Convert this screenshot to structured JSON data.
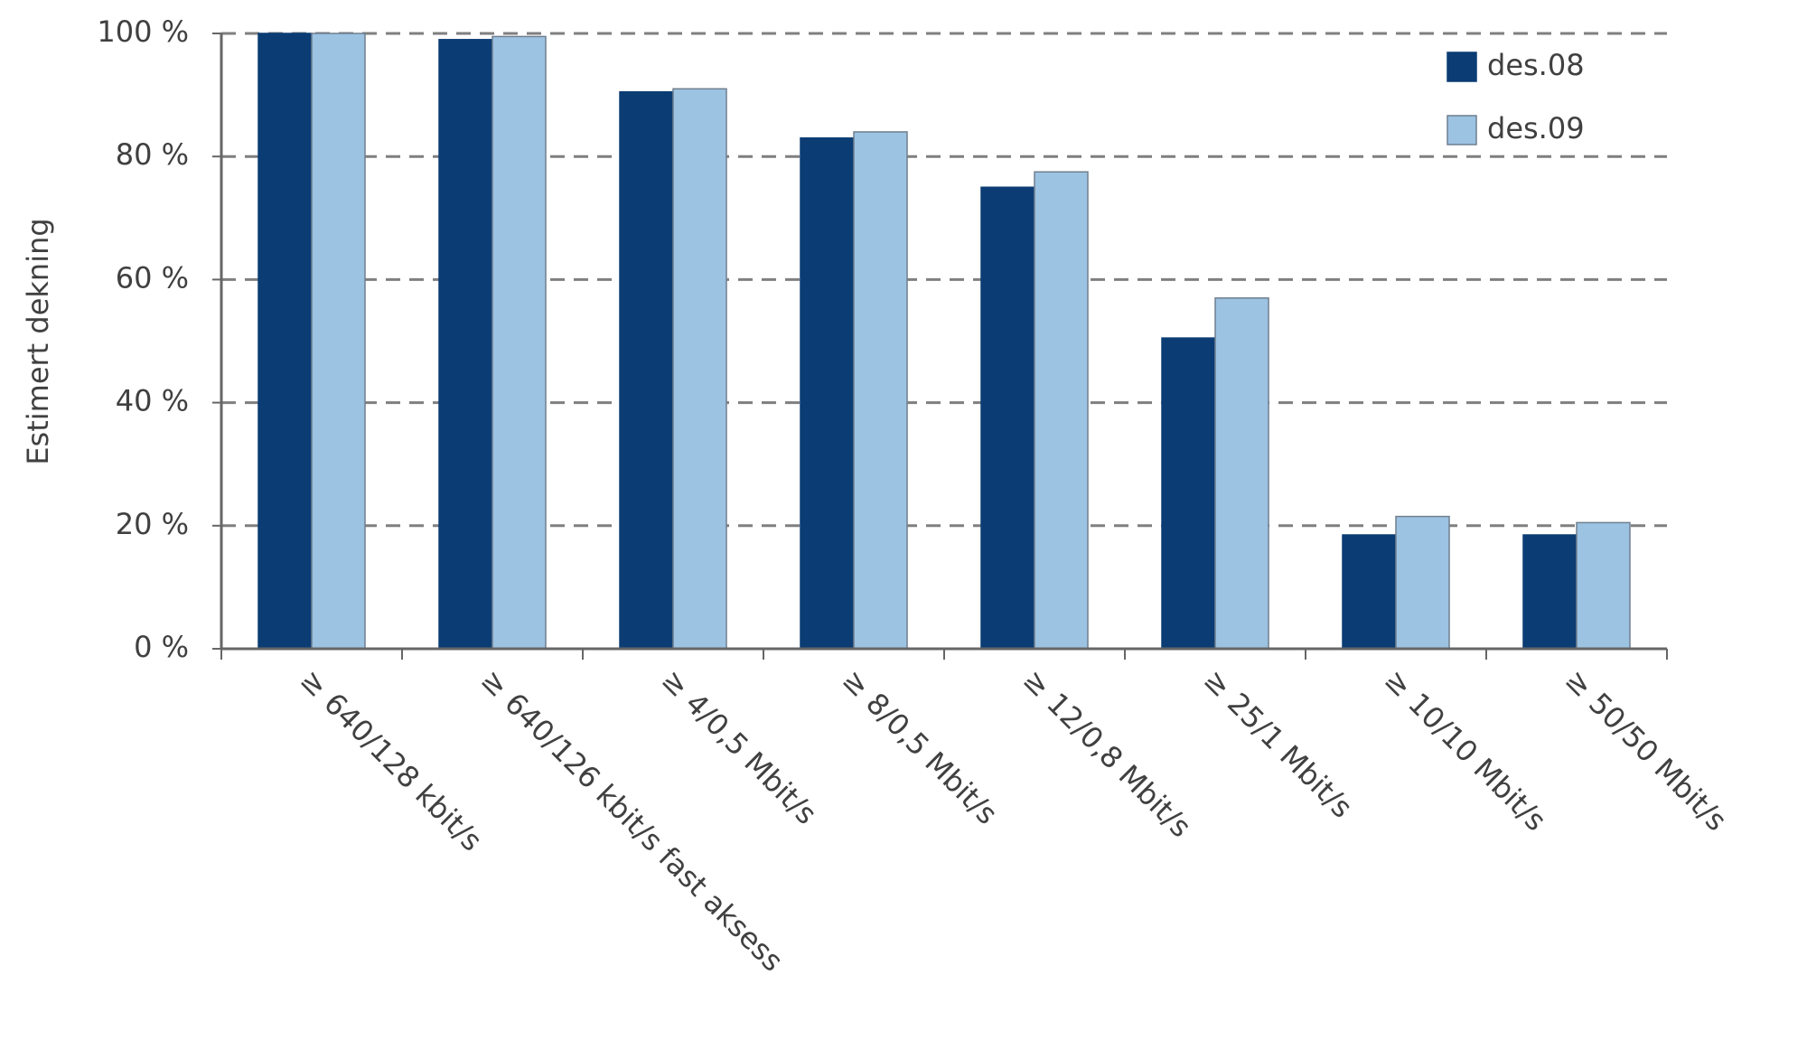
{
  "chart_data": {
    "type": "bar",
    "y_label": "Estimert dekning",
    "categories": [
      "≥ 640/128 kbit/s",
      "≥ 640/126 kbit/s fast aksess",
      "≥ 4/0,5 Mbit/s",
      "≥ 8/0,5 Mbit/s",
      "≥ 12/0,8 Mbit/s",
      "≥ 25/1 Mbit/s",
      "≥ 10/10 Mbit/s",
      "≥ 50/50 Mbit/s"
    ],
    "series": [
      {
        "name": "des.08",
        "color": "#0b3d74",
        "values": [
          100,
          99,
          90.5,
          83,
          75,
          50.5,
          18.5,
          18.5
        ]
      },
      {
        "name": "des.09",
        "color": "#9dc3e2",
        "values": [
          100,
          99.5,
          91,
          84,
          77.5,
          57,
          21.5,
          20.5
        ]
      }
    ],
    "ylim": [
      0,
      100
    ],
    "yticks": [
      {
        "value": 0,
        "label": "0 %"
      },
      {
        "value": 20,
        "label": "20 %"
      },
      {
        "value": 40,
        "label": "40 %"
      },
      {
        "value": 60,
        "label": "60 %"
      },
      {
        "value": 80,
        "label": "80 %"
      },
      {
        "value": 100,
        "label": "100 %"
      }
    ],
    "grid": true,
    "legend": "top-right"
  }
}
